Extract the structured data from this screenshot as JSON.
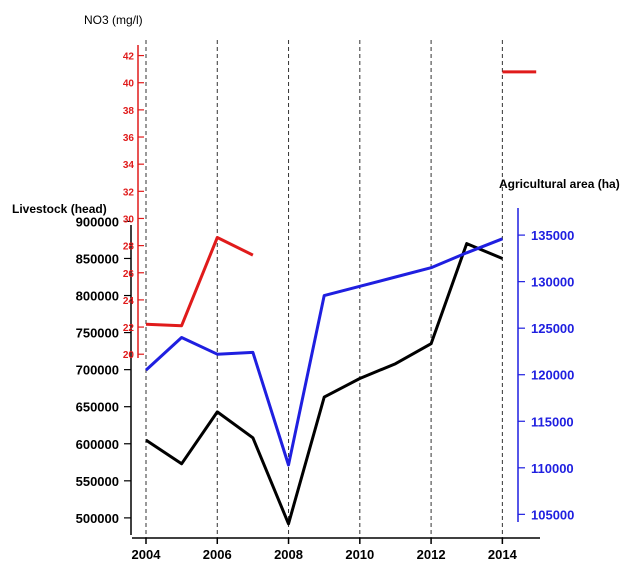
{
  "chart_data": {
    "type": "line",
    "x": [
      2004,
      2005,
      2006,
      2007,
      2008,
      2009,
      2010,
      2011,
      2012,
      2013,
      2014
    ],
    "x_ticks": [
      "2004",
      "2006",
      "2008",
      "2010",
      "2012",
      "2014"
    ],
    "xlim": [
      2004,
      2015
    ],
    "axes": {
      "livestock": {
        "label": "Livestock (head)",
        "ticks": [
          "900000",
          "850000",
          "800000",
          "750000",
          "700000",
          "650000",
          "600000",
          "550000",
          "500000"
        ],
        "ylim": [
          485000,
          910000
        ],
        "color": "#000000"
      },
      "area": {
        "label": "Agricultural area (ha)",
        "ticks": [
          "135000",
          "130000",
          "125000",
          "120000",
          "115000",
          "110000",
          "105000"
        ],
        "ylim": [
          104500,
          136300
        ],
        "color": "#1f1fe0"
      },
      "no3": {
        "label": "NO3 (mg/l)",
        "ticks": [
          "42",
          "40",
          "38",
          "36",
          "34",
          "32",
          "30",
          "28",
          "26",
          "24",
          "22",
          "20"
        ],
        "ylim": [
          19.5,
          43
        ],
        "color": "#e01b1b"
      }
    },
    "series": [
      {
        "axis": "livestock",
        "color": "#000000",
        "points": [
          [
            2004,
            605000
          ],
          [
            2005,
            573000
          ],
          [
            2006,
            643000
          ],
          [
            2007,
            608000
          ],
          [
            2008,
            492000
          ],
          [
            2009,
            663000
          ],
          [
            2010,
            688000
          ],
          [
            2011,
            708000
          ],
          [
            2012,
            735000
          ],
          [
            2013,
            870000
          ],
          [
            2014,
            850000
          ]
        ]
      },
      {
        "axis": "area",
        "color": "#1f1fe0",
        "points": [
          [
            2004,
            120500
          ],
          [
            2005,
            124000
          ],
          [
            2006,
            122200
          ],
          [
            2007,
            122400
          ],
          [
            2008,
            110300
          ],
          [
            2009,
            128500
          ],
          [
            2010,
            129500
          ],
          [
            2011,
            130500
          ],
          [
            2012,
            131500
          ],
          [
            2013,
            133100
          ],
          [
            2014,
            134600
          ]
        ]
      },
      {
        "axis": "no3",
        "color": "#e01b1b",
        "segments": [
          [
            [
              2004,
              22.2
            ],
            [
              2005,
              22.1
            ],
            [
              2006,
              28.6
            ],
            [
              2007,
              27.3
            ]
          ],
          [
            [
              2014,
              40.8
            ],
            [
              2014.95,
              40.8
            ]
          ]
        ]
      }
    ],
    "vertical_grid": "dashed",
    "legend": "none"
  }
}
